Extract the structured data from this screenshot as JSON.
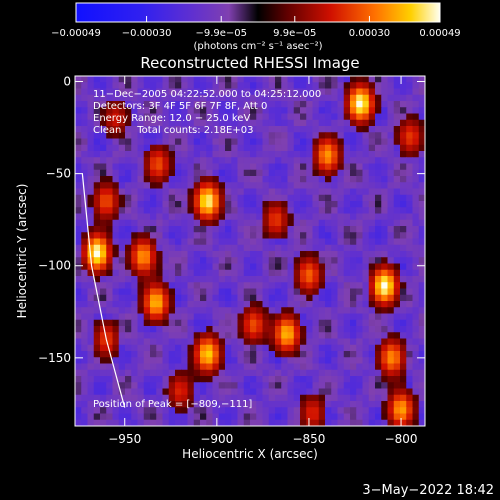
{
  "chart_data": {
    "type": "heatmap",
    "title": "Reconstructed RHESSI Image",
    "xlabel": "Heliocentric X (arcsec)",
    "ylabel": "Heliocentric Y (arcsec)",
    "x_range": [
      -977,
      -787
    ],
    "y_range": [
      -187,
      3
    ],
    "x_ticks": [
      {
        "value": -950,
        "label": "−950"
      },
      {
        "value": -900,
        "label": "−900"
      },
      {
        "value": -850,
        "label": "−850"
      },
      {
        "value": -800,
        "label": "−800"
      }
    ],
    "y_ticks": [
      {
        "value": 0,
        "label": "0"
      },
      {
        "value": -50,
        "label": "−50"
      },
      {
        "value": -100,
        "label": "−100"
      },
      {
        "value": -150,
        "label": "−150"
      }
    ],
    "colorbar": {
      "range": [
        -0.00049,
        0.00049
      ],
      "ticks": [
        {
          "value": -0.00049,
          "label": "−0.00049"
        },
        {
          "value": -0.0003,
          "label": "−0.00030"
        },
        {
          "value": -9.9e-05,
          "label": "−9.9e−05"
        },
        {
          "value": 9.9e-05,
          "label": "9.9e−05"
        },
        {
          "value": 0.0003,
          "label": "0.00030"
        },
        {
          "value": 0.00049,
          "label": "0.00049"
        }
      ],
      "units_label": "(photons cm⁻² s⁻¹ asec⁻²)"
    },
    "annotations": [
      "11−Dec−2005 04:22:52.000 to 04:25:12.000",
      "Detectors: 3F 4F 5F 6F 7F 8F, Att 0",
      "Energy Range: 12.0 − 25.0 keV",
      "Clean     Total counts: 2.18E+03"
    ],
    "peak_label": "Position of Peak = [−809,−111]",
    "peak_position": [
      -809,
      -111
    ],
    "hot_sources": [
      {
        "x": -822,
        "y": -12,
        "peak": 1.0
      },
      {
        "x": -965,
        "y": -93,
        "peak": 1.0
      },
      {
        "x": -905,
        "y": -65,
        "peak": 0.95
      },
      {
        "x": -809,
        "y": -111,
        "peak": 1.0
      },
      {
        "x": -840,
        "y": -40,
        "peak": 0.72
      },
      {
        "x": -905,
        "y": -148,
        "peak": 0.85
      },
      {
        "x": -880,
        "y": -132,
        "peak": 0.55
      },
      {
        "x": -862,
        "y": -137,
        "peak": 0.8
      },
      {
        "x": -933,
        "y": -120,
        "peak": 0.8
      },
      {
        "x": -940,
        "y": -95,
        "peak": 0.72
      },
      {
        "x": -932,
        "y": -45,
        "peak": 0.55
      },
      {
        "x": -960,
        "y": -65,
        "peak": 0.55
      },
      {
        "x": -850,
        "y": -105,
        "peak": 0.6
      },
      {
        "x": -805,
        "y": -150,
        "peak": 0.7
      },
      {
        "x": -800,
        "y": -178,
        "peak": 0.75
      },
      {
        "x": -848,
        "y": -180,
        "peak": 0.45
      },
      {
        "x": -920,
        "y": -168,
        "peak": 0.45
      },
      {
        "x": -960,
        "y": -140,
        "peak": 0.5
      },
      {
        "x": -868,
        "y": -75,
        "peak": 0.5
      },
      {
        "x": -795,
        "y": -30,
        "peak": 0.5
      },
      {
        "x": -955,
        "y": -20,
        "peak": 0.4
      }
    ],
    "limb_curve": [
      {
        "x": -973,
        "y": -50
      },
      {
        "x": -968,
        "y": -100
      },
      {
        "x": -960,
        "y": -140
      },
      {
        "x": -950,
        "y": -177
      }
    ],
    "grid": false
  },
  "footer": {
    "date": "3−May−2022 18:42"
  }
}
